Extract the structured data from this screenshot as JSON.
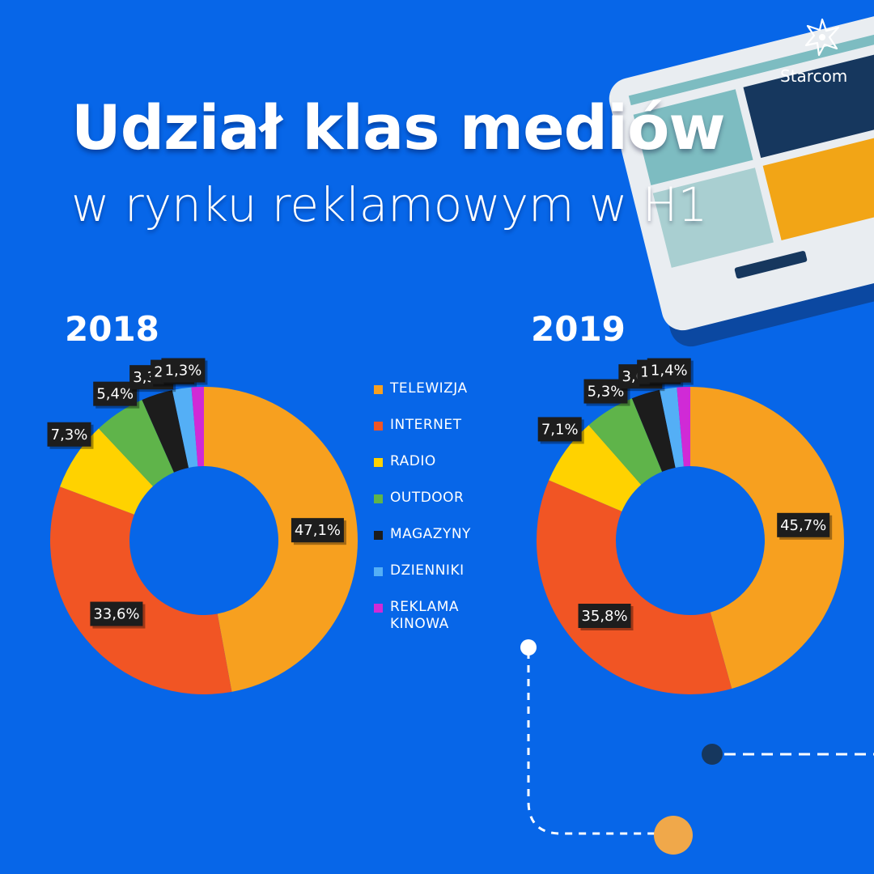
{
  "header": {
    "title": "Udział klas mediów",
    "subtitle": "w rynku reklamowym w H1",
    "brand": "Starcom"
  },
  "colors": {
    "background": "#0766e8",
    "TELEWIZJA": "#f7a01f",
    "INTERNET": "#f15524",
    "RADIO": "#ffd200",
    "OUTDOOR": "#5fb44a",
    "MAGAZYNY": "#1c1c1c",
    "DZIENNIKI": "#54aff6",
    "REKLAMA KINOWA": "#d02ad6",
    "label_bg": "#1d1d1d"
  },
  "legend": [
    "TELEWIZJA",
    "INTERNET",
    "RADIO",
    "OUTDOOR",
    "MAGAZYNY",
    "DZIENNIKI",
    "REKLAMA KINOWA"
  ],
  "chart_data": [
    {
      "type": "pie",
      "title": "2018",
      "categories": [
        "TELEWIZJA",
        "INTERNET",
        "RADIO",
        "OUTDOOR",
        "MAGAZYNY",
        "DZIENNIKI",
        "REKLAMA KINOWA"
      ],
      "values": [
        47.1,
        33.6,
        7.3,
        5.4,
        3.3,
        2.0,
        1.3
      ],
      "labels": [
        "47,1%",
        "33,6%",
        "7,3%",
        "5,4%",
        "3,3%",
        "2,0%",
        "1,3%"
      ]
    },
    {
      "type": "pie",
      "title": "2019",
      "categories": [
        "TELEWIZJA",
        "INTERNET",
        "RADIO",
        "OUTDOOR",
        "MAGAZYNY",
        "DZIENNIKI",
        "REKLAMA KINOWA"
      ],
      "values": [
        45.7,
        35.8,
        7.1,
        5.3,
        3.0,
        1.8,
        1.4
      ],
      "labels": [
        "45,7%",
        "35,8%",
        "7,1%",
        "5,3%",
        "3,0%",
        "1,8%",
        "1,4%"
      ]
    }
  ]
}
